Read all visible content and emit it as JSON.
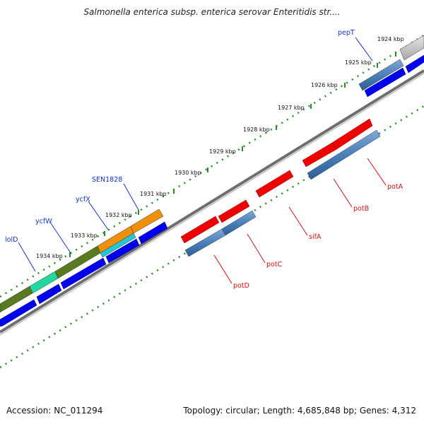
{
  "title": "Salmonella enterica subsp. enterica serovar Enteritidis str....",
  "footer": {
    "accession_label": "Accession:",
    "accession_value": "NC_011294",
    "topology_label": "Topology:",
    "topology_value": "circular",
    "length_label": "Length:",
    "length_value": "4,685,848 bp",
    "genes_label": "Genes:",
    "genes_value": "4,312"
  },
  "colors": {
    "blue": "#0000ee",
    "steel": "#4a7fb8",
    "red": "#ee0000",
    "orange": "#f0900a",
    "green": "#5a7a20",
    "teal": "#20d8a0",
    "cyan": "#20c8d8",
    "grey": "#bdbdbd",
    "dot": "#2a8a2a",
    "backbone": "#777777",
    "blue_label": "#1030cc",
    "red_label": "#cc1010"
  },
  "ticks": [
    "1924 kbp",
    "1925 kbp",
    "1926 kbp",
    "1927 kbp",
    "1928 kbp",
    "1929 kbp",
    "1930 kbp",
    "1931 kbp",
    "1932 kbp",
    "1933 kbp",
    "1934 kbp"
  ],
  "genes_top": [
    "pepT",
    "SEN1828",
    "ycfX",
    "ycfW",
    "lolD"
  ],
  "genes_bottom": [
    "potA",
    "potB",
    "sifA",
    "potC",
    "potD"
  ]
}
